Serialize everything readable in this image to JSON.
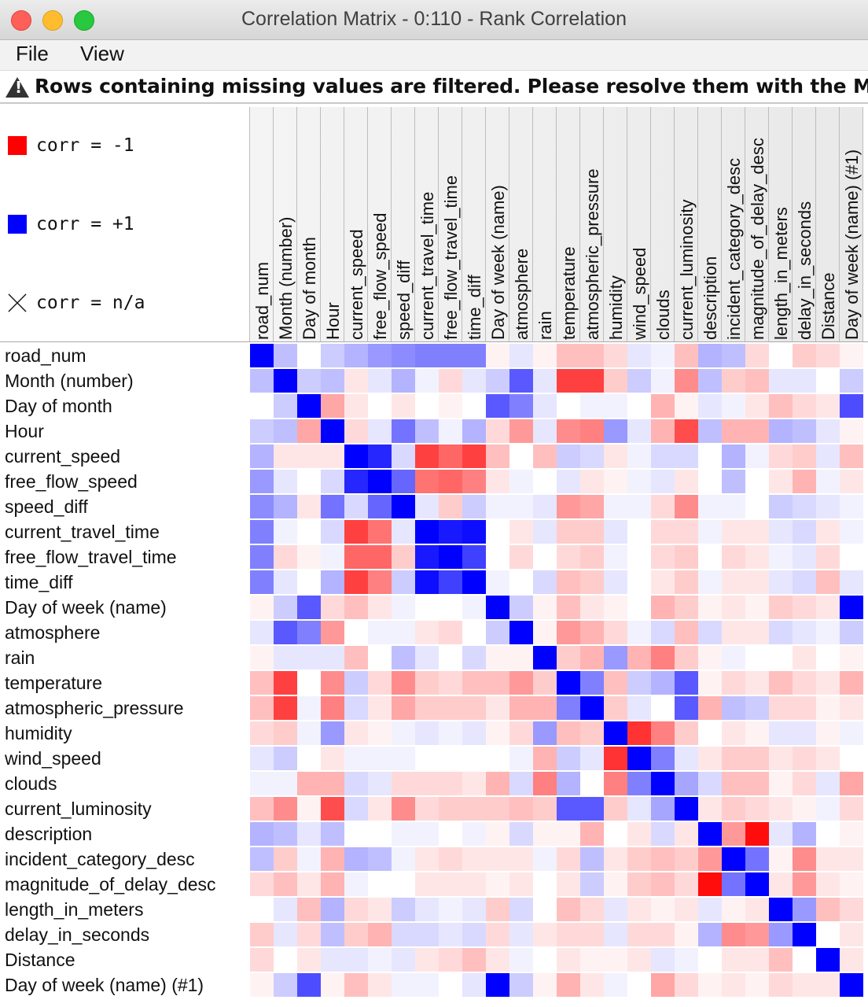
{
  "window": {
    "title": "Correlation Matrix - 0:110 - Rank Correlation"
  },
  "menu": {
    "items": [
      "File",
      "View"
    ]
  },
  "warning": {
    "text": "Rows containing missing values are filtered. Please resolve them with the Mis..."
  },
  "legend": [
    {
      "label": "corr = -1",
      "color": "#ff0000"
    },
    {
      "label": "corr = +1",
      "color": "#0000ff"
    },
    {
      "label": "corr = n/a",
      "icon": "cross-icon"
    }
  ],
  "columns": [
    "road_num",
    "Month (number)",
    "Day of month",
    "Hour",
    "current_speed",
    "free_flow_speed",
    "speed_diff",
    "current_travel_time",
    "free_flow_travel_time",
    "time_diff",
    "Day of week (name)",
    "atmosphere",
    "rain",
    "temperature",
    "atmospheric_pressure",
    "humidity",
    "wind_speed",
    "clouds",
    "current_luminosity",
    "description",
    "incident_category_desc",
    "magnitude_of_delay_desc",
    "length_in_meters",
    "delay_in_seconds",
    "Distance",
    "Day of week (name) (#1)"
  ],
  "rows": [
    "road_num",
    "Month (number)",
    "Day of month",
    "Hour",
    "current_speed",
    "free_flow_speed",
    "speed_diff",
    "current_travel_time",
    "free_flow_travel_time",
    "time_diff",
    "Day of week (name)",
    "atmosphere",
    "rain",
    "temperature",
    "atmospheric_pressure",
    "humidity",
    "wind_speed",
    "clouds",
    "current_luminosity",
    "description",
    "incident_category_desc",
    "magnitude_of_delay_desc",
    "length_in_meters",
    "delay_in_seconds",
    "Distance",
    "Day of week (name) (#1)"
  ],
  "matrix": [
    [
      1,
      0.25,
      0,
      0.2,
      0.3,
      0.4,
      0.45,
      0.5,
      0.5,
      0.5,
      -0.05,
      0.1,
      -0.05,
      -0.25,
      -0.25,
      -0.15,
      0.1,
      0.05,
      -0.25,
      0.3,
      0.25,
      -0.15,
      0,
      -0.2,
      -0.15,
      -0.05
    ],
    [
      0.25,
      1,
      0.2,
      0.25,
      -0.1,
      0.1,
      0.3,
      0.05,
      -0.15,
      0.1,
      0.2,
      0.65,
      0.1,
      -0.75,
      -0.75,
      -0.2,
      0.2,
      0.05,
      -0.45,
      0.25,
      -0.2,
      -0.25,
      0.1,
      0.1,
      0,
      0.2
    ],
    [
      0,
      0.2,
      1,
      -0.35,
      -0.1,
      0,
      -0.1,
      0,
      -0.05,
      0,
      0.65,
      0.5,
      0.1,
      0,
      0.05,
      0.05,
      0,
      -0.3,
      -0.05,
      0.1,
      0.05,
      -0.1,
      -0.25,
      -0.15,
      -0.1,
      0.7
    ],
    [
      0.2,
      0.25,
      -0.35,
      1,
      -0.15,
      0.1,
      0.55,
      0.25,
      0.05,
      0.3,
      -0.15,
      -0.4,
      0.1,
      -0.45,
      -0.5,
      0.4,
      0.1,
      -0.3,
      -0.7,
      0.25,
      -0.3,
      -0.3,
      0.3,
      0.25,
      0.1,
      -0.05
    ],
    [
      0.3,
      -0.1,
      -0.1,
      -0.1,
      1,
      0.85,
      0.15,
      -0.75,
      -0.6,
      -0.75,
      -0.25,
      0,
      -0.25,
      0.2,
      0.15,
      -0.1,
      0.05,
      0.15,
      0.15,
      0,
      0.3,
      0.05,
      -0.15,
      -0.2,
      0.1,
      -0.25
    ],
    [
      0.4,
      0.1,
      0,
      0.15,
      0.85,
      1,
      0.6,
      -0.55,
      -0.6,
      -0.5,
      -0.1,
      0.05,
      0,
      0.1,
      -0.1,
      -0.05,
      0.05,
      0.1,
      -0.1,
      0,
      0.25,
      0,
      -0.1,
      -0.3,
      0.05,
      -0.1
    ],
    [
      0.45,
      0.3,
      -0.1,
      0.55,
      0.15,
      0.6,
      1,
      0.1,
      -0.2,
      0.2,
      0.05,
      0.05,
      0.1,
      -0.4,
      -0.35,
      0.05,
      0.05,
      -0.15,
      -0.45,
      0.05,
      0.05,
      0,
      0.2,
      0.15,
      0.1,
      0.05
    ],
    [
      0.5,
      0.05,
      0,
      0.15,
      -0.75,
      -0.55,
      0.1,
      1,
      0.9,
      0.95,
      0,
      -0.1,
      0.1,
      -0.2,
      -0.2,
      0.1,
      0,
      -0.15,
      -0.15,
      0.05,
      -0.1,
      -0.1,
      0.1,
      0.15,
      -0.1,
      0.05
    ],
    [
      0.5,
      -0.15,
      -0.05,
      0.05,
      -0.6,
      -0.6,
      -0.2,
      0.9,
      1,
      0.75,
      0,
      -0.15,
      0,
      -0.15,
      -0.2,
      0.05,
      0,
      -0.15,
      -0.2,
      0,
      -0.15,
      -0.1,
      0.05,
      0.1,
      -0.15,
      0
    ],
    [
      0.5,
      0.1,
      0,
      0.3,
      -0.75,
      -0.5,
      0.2,
      0.95,
      0.75,
      1,
      0.05,
      0,
      0.15,
      -0.25,
      -0.2,
      0.1,
      0,
      -0.1,
      -0.2,
      0.05,
      -0.1,
      -0.1,
      0.1,
      0.15,
      -0.25,
      0.1
    ],
    [
      -0.05,
      0.2,
      0.65,
      -0.15,
      -0.25,
      -0.1,
      0.05,
      0,
      0,
      0.05,
      1,
      0.2,
      -0.05,
      -0.25,
      -0.1,
      -0.05,
      0,
      -0.3,
      -0.2,
      -0.05,
      -0.1,
      -0.05,
      -0.2,
      -0.15,
      -0.1,
      1
    ],
    [
      0.1,
      0.65,
      0.5,
      -0.4,
      0,
      0.05,
      0.05,
      -0.1,
      -0.15,
      0,
      0.2,
      1,
      -0.05,
      -0.4,
      -0.3,
      -0.15,
      0.05,
      0.15,
      -0.25,
      0.15,
      -0.1,
      -0.1,
      0.15,
      0.1,
      0.05,
      0.2
    ],
    [
      -0.05,
      0.1,
      0.1,
      0.1,
      -0.25,
      0,
      0.25,
      0.1,
      0,
      0.15,
      -0.05,
      -0.05,
      1,
      -0.2,
      -0.3,
      0.4,
      -0.3,
      -0.5,
      -0.2,
      -0.05,
      0.05,
      0,
      0,
      -0.1,
      0,
      -0.05
    ],
    [
      -0.25,
      -0.75,
      0,
      -0.45,
      0.2,
      -0.15,
      -0.45,
      -0.2,
      -0.15,
      -0.25,
      -0.25,
      -0.4,
      -0.2,
      1,
      0.5,
      -0.25,
      0.2,
      0.3,
      0.65,
      -0.05,
      -0.15,
      -0.1,
      -0.25,
      -0.15,
      -0.1,
      -0.3
    ],
    [
      -0.25,
      -0.75,
      0.05,
      -0.5,
      0.15,
      -0.1,
      -0.35,
      -0.2,
      -0.2,
      -0.2,
      -0.1,
      -0.3,
      -0.3,
      0.5,
      1,
      -0.2,
      0.1,
      0,
      0.65,
      -0.3,
      0.25,
      0.2,
      -0.15,
      -0.15,
      -0.05,
      -0.1
    ],
    [
      -0.15,
      -0.2,
      0.05,
      0.4,
      -0.1,
      -0.05,
      0.05,
      0.1,
      0.05,
      0.1,
      -0.05,
      -0.15,
      0.4,
      -0.25,
      -0.2,
      1,
      -0.8,
      -0.5,
      -0.2,
      0,
      -0.1,
      -0.05,
      0.1,
      0.1,
      -0.05,
      0.05
    ],
    [
      0.1,
      0.2,
      0,
      -0.1,
      0.05,
      0.05,
      0.05,
      0,
      0,
      0,
      0,
      0.05,
      -0.3,
      0.2,
      0.1,
      -0.8,
      1,
      0.5,
      0.1,
      -0.1,
      -0.2,
      -0.2,
      -0.1,
      -0.15,
      -0.1,
      0
    ],
    [
      0.05,
      0.05,
      -0.3,
      -0.3,
      0.15,
      0.1,
      -0.15,
      -0.15,
      -0.15,
      -0.1,
      -0.3,
      0.15,
      -0.5,
      0.3,
      0,
      -0.5,
      0.5,
      1,
      0.35,
      0.15,
      -0.25,
      -0.25,
      -0.05,
      -0.15,
      0.1,
      -0.35
    ],
    [
      -0.25,
      -0.45,
      -0.05,
      -0.7,
      0.15,
      -0.1,
      -0.45,
      -0.15,
      -0.2,
      -0.2,
      -0.2,
      -0.25,
      -0.2,
      0.65,
      0.65,
      -0.2,
      0.1,
      0.35,
      1,
      -0.1,
      -0.2,
      -0.15,
      -0.1,
      -0.05,
      0.05,
      -0.15
    ],
    [
      0.3,
      0.25,
      0.1,
      0.25,
      0,
      0,
      0.05,
      0.05,
      0,
      0.05,
      -0.05,
      0.15,
      -0.05,
      -0.05,
      -0.3,
      0,
      -0.1,
      0.15,
      -0.1,
      1,
      -0.4,
      -0.95,
      0.1,
      0.3,
      0,
      -0.05
    ],
    [
      0.25,
      -0.2,
      0.05,
      -0.3,
      0.3,
      0.25,
      0.05,
      -0.1,
      -0.15,
      -0.1,
      -0.1,
      -0.1,
      0.05,
      -0.15,
      0.25,
      -0.1,
      -0.2,
      -0.25,
      -0.2,
      -0.4,
      1,
      0.55,
      -0.05,
      -0.45,
      -0.1,
      -0.1
    ],
    [
      -0.15,
      -0.25,
      -0.1,
      -0.3,
      0.05,
      0,
      0,
      -0.1,
      -0.1,
      -0.1,
      -0.05,
      -0.1,
      0,
      -0.1,
      0.2,
      -0.05,
      -0.2,
      -0.25,
      -0.15,
      -0.95,
      0.55,
      1,
      -0.1,
      -0.4,
      -0.1,
      -0.05
    ],
    [
      0,
      0.1,
      -0.25,
      0.3,
      -0.15,
      -0.1,
      0.2,
      0.1,
      0.05,
      0.1,
      -0.2,
      0.15,
      0,
      -0.25,
      -0.15,
      0.1,
      -0.1,
      -0.05,
      -0.1,
      0.1,
      -0.05,
      -0.1,
      1,
      0.4,
      -0.25,
      -0.15
    ],
    [
      -0.2,
      0.1,
      -0.15,
      0.25,
      -0.2,
      -0.3,
      0.15,
      0.15,
      0.1,
      0.15,
      -0.15,
      0.1,
      -0.1,
      -0.15,
      -0.15,
      0.1,
      -0.15,
      -0.15,
      -0.05,
      0.3,
      -0.45,
      -0.4,
      0.4,
      1,
      0,
      -0.1
    ],
    [
      -0.15,
      0,
      -0.1,
      0.1,
      0.1,
      0.05,
      0.1,
      -0.1,
      -0.15,
      -0.25,
      -0.1,
      0.05,
      0,
      -0.1,
      -0.05,
      -0.05,
      -0.1,
      0.1,
      0.05,
      0,
      -0.1,
      -0.1,
      -0.25,
      0,
      1,
      -0.1
    ],
    [
      -0.05,
      0.2,
      0.7,
      -0.05,
      -0.25,
      -0.1,
      0.05,
      0.05,
      0,
      0.1,
      1,
      0.2,
      -0.05,
      -0.3,
      -0.1,
      0.05,
      0,
      -0.35,
      -0.15,
      -0.05,
      -0.1,
      -0.05,
      -0.15,
      -0.1,
      -0.1,
      1
    ]
  ]
}
